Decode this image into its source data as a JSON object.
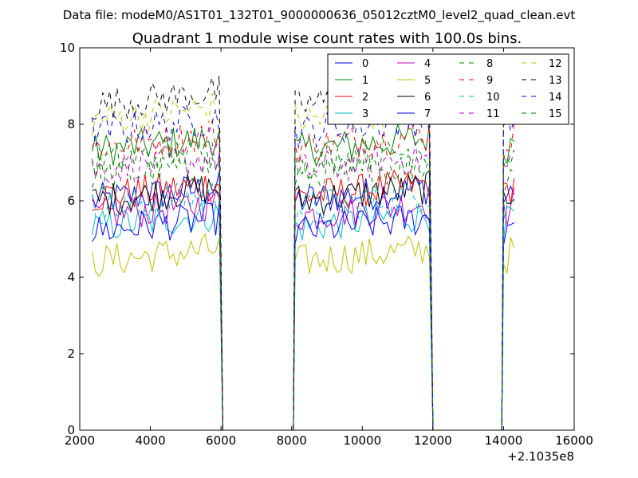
{
  "header": "Data file: modeM0/AS1T01_132T01_9000000636_05012cztM0_level2_quad_clean.evt",
  "chart_data": {
    "type": "line",
    "title": "Quadrant 1 module wise count rates with 100.0s bins.",
    "xlabel": "",
    "ylabel": "",
    "x_offset_label": "+2.1035e8",
    "xlim": [
      2000,
      16000
    ],
    "ylim": [
      0,
      10
    ],
    "xticks": [
      "2000",
      "4000",
      "6000",
      "8000",
      "10000",
      "12000",
      "14000",
      "16000"
    ],
    "yticks": [
      "0",
      "2",
      "4",
      "6",
      "8",
      "10"
    ],
    "legend_position": "top-right",
    "segments": [
      {
        "x_start": 2350,
        "x_end": 6000,
        "step": 100
      },
      {
        "x_start": 8100,
        "x_end": 11950,
        "step": 100
      },
      {
        "x_start": 14000,
        "x_end": 14300,
        "step": 100
      }
    ],
    "zero_drops": [
      [
        6050,
        8050
      ],
      [
        12000,
        13950
      ]
    ],
    "series": [
      {
        "name": "0",
        "color": "#0000ff",
        "dashed": false,
        "level": 6.0
      },
      {
        "name": "1",
        "color": "#008000",
        "dashed": false,
        "level": 7.3
      },
      {
        "name": "2",
        "color": "#ff0000",
        "dashed": false,
        "level": 6.1
      },
      {
        "name": "3",
        "color": "#00bfbf",
        "dashed": false,
        "level": 5.3
      },
      {
        "name": "4",
        "color": "#bf00bf",
        "dashed": false,
        "level": 5.6
      },
      {
        "name": "5",
        "color": "#bfbf00",
        "dashed": false,
        "level": 4.4
      },
      {
        "name": "6",
        "color": "#000000",
        "dashed": false,
        "level": 6.0
      },
      {
        "name": "7",
        "color": "#0000ff",
        "dashed": false,
        "level": 5.2
      },
      {
        "name": "8",
        "color": "#008000",
        "dashed": true,
        "level": 6.6
      },
      {
        "name": "9",
        "color": "#ff0000",
        "dashed": true,
        "level": 7.4
      },
      {
        "name": "10",
        "color": "#00bfbf",
        "dashed": true,
        "level": 5.8
      },
      {
        "name": "11",
        "color": "#bf00bf",
        "dashed": true,
        "level": 6.8
      },
      {
        "name": "12",
        "color": "#bfbf00",
        "dashed": true,
        "level": 8.1
      },
      {
        "name": "13",
        "color": "#000000",
        "dashed": true,
        "level": 8.5
      },
      {
        "name": "14",
        "color": "#0000ff",
        "dashed": true,
        "level": 7.8
      },
      {
        "name": "15",
        "color": "#008000",
        "dashed": true,
        "level": 7.0
      }
    ]
  }
}
